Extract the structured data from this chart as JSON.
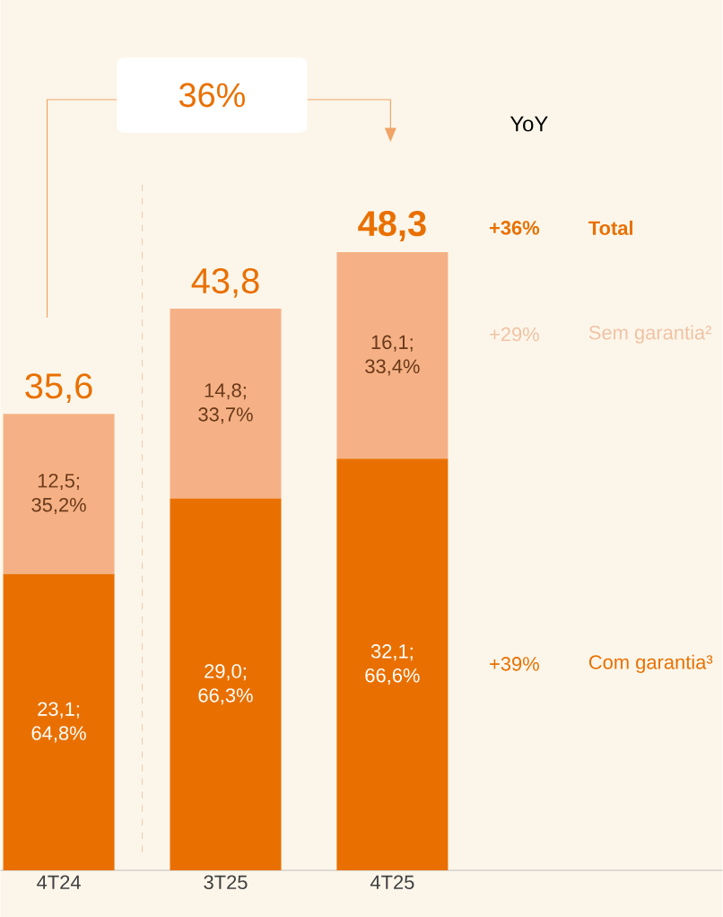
{
  "chart_data": {
    "type": "bar",
    "stacked": true,
    "categories": [
      "4T24",
      "3T25",
      "4T25"
    ],
    "series": [
      {
        "name": "Com garantia³",
        "color": "#e97000",
        "values": [
          23.1,
          29.0,
          32.1
        ],
        "value_labels": [
          "23,1; 64,8%",
          "29,0; 66,3%",
          "32,1; 66,6%"
        ]
      },
      {
        "name": "Sem garantia²",
        "color": "#f5b185",
        "values": [
          12.5,
          14.8,
          16.1
        ],
        "value_labels": [
          "12,5; 35,2%",
          "14,8; 33,7%",
          "16,1; 33,4%"
        ]
      }
    ],
    "totals": [
      "35,6",
      "43,8",
      "48,3"
    ],
    "tick_labels": "x",
    "annotations": [
      "36%",
      "YoY",
      "+36%",
      "Total",
      "+29%",
      "+39%"
    ]
  }
}
